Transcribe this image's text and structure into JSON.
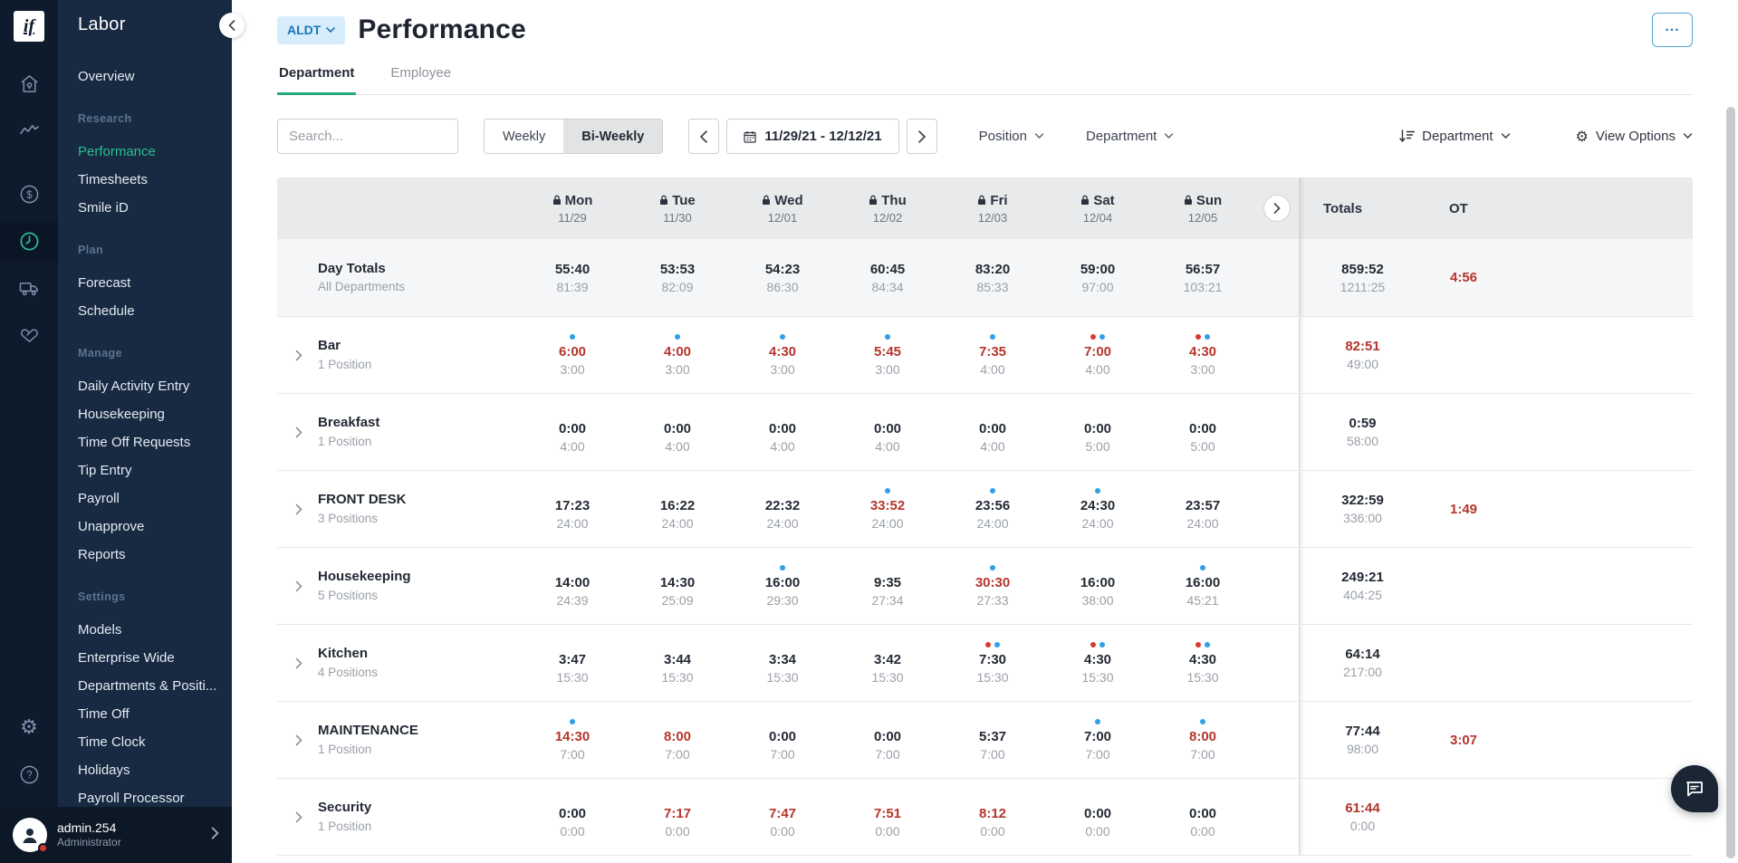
{
  "sidebar": {
    "product": "Labor",
    "rail_icons": [
      {
        "icon": "home",
        "active": false
      },
      {
        "icon": "trend",
        "active": false
      },
      {
        "icon": "dollar",
        "active": false
      },
      {
        "icon": "clock",
        "active": true
      },
      {
        "icon": "truck",
        "active": false
      },
      {
        "icon": "hands",
        "active": false
      }
    ],
    "rail_bottom_icons": [
      {
        "icon": "gear",
        "active": false
      },
      {
        "icon": "help",
        "active": false
      }
    ],
    "sections": [
      {
        "label": "",
        "items": [
          {
            "label": "Overview",
            "active": false
          }
        ]
      },
      {
        "label": "Research",
        "items": [
          {
            "label": "Performance",
            "active": true
          },
          {
            "label": "Timesheets",
            "active": false
          },
          {
            "label": "Smile iD",
            "active": false
          }
        ]
      },
      {
        "label": "Plan",
        "items": [
          {
            "label": "Forecast",
            "active": false
          },
          {
            "label": "Schedule",
            "active": false
          }
        ]
      },
      {
        "label": "Manage",
        "items": [
          {
            "label": "Daily Activity Entry",
            "active": false
          },
          {
            "label": "Housekeeping",
            "active": false
          },
          {
            "label": "Time Off Requests",
            "active": false
          },
          {
            "label": "Tip Entry",
            "active": false
          },
          {
            "label": "Payroll",
            "active": false
          },
          {
            "label": "Unapprove",
            "active": false
          },
          {
            "label": "Reports",
            "active": false
          }
        ]
      },
      {
        "label": "Settings",
        "items": [
          {
            "label": "Models",
            "active": false
          },
          {
            "label": "Enterprise Wide",
            "active": false
          },
          {
            "label": "Departments & Positi...",
            "active": false
          },
          {
            "label": "Time Off",
            "active": false
          },
          {
            "label": "Time Clock",
            "active": false
          },
          {
            "label": "Holidays",
            "active": false
          },
          {
            "label": "Payroll Processor",
            "active": false
          }
        ]
      }
    ],
    "user": {
      "name": "admin.254",
      "role": "Administrator"
    }
  },
  "header": {
    "scope_label": "ALDT",
    "title": "Performance",
    "tabs": [
      {
        "label": "Department",
        "active": true
      },
      {
        "label": "Employee",
        "active": false
      }
    ]
  },
  "toolbar": {
    "search_placeholder": "Search...",
    "view_toggle": [
      {
        "label": "Weekly",
        "selected": false
      },
      {
        "label": "Bi-Weekly",
        "selected": true
      }
    ],
    "date_range": "11/29/21 - 12/12/21",
    "position_label": "Position",
    "department_label": "Department",
    "sort_label": "Department",
    "view_options_label": "View Options"
  },
  "table": {
    "day_headers": [
      {
        "day": "Mon",
        "date": "11/29"
      },
      {
        "day": "Tue",
        "date": "11/30"
      },
      {
        "day": "Wed",
        "date": "12/01"
      },
      {
        "day": "Thu",
        "date": "12/02"
      },
      {
        "day": "Fri",
        "date": "12/03"
      },
      {
        "day": "Sat",
        "date": "12/04"
      },
      {
        "day": "Sun",
        "date": "12/05"
      }
    ],
    "totals_label": "Totals",
    "ot_label": "OT",
    "day_totals": {
      "name": "Day Totals",
      "sublabel": "All Departments",
      "cells": [
        {
          "a": "55:40",
          "s": "81:39"
        },
        {
          "a": "53:53",
          "s": "82:09"
        },
        {
          "a": "54:23",
          "s": "86:30"
        },
        {
          "a": "60:45",
          "s": "84:34"
        },
        {
          "a": "83:20",
          "s": "85:33"
        },
        {
          "a": "59:00",
          "s": "97:00"
        },
        {
          "a": "56:57",
          "s": "103:21"
        }
      ],
      "total": {
        "a": "859:52",
        "s": "1211:25",
        "red": false
      },
      "ot": "4:56"
    },
    "rows": [
      {
        "name": "Bar",
        "sublabel": "1 Position",
        "cells": [
          {
            "a": "6:00",
            "s": "3:00",
            "red": true,
            "dots": [
              "b"
            ]
          },
          {
            "a": "4:00",
            "s": "3:00",
            "red": true,
            "dots": [
              "b"
            ]
          },
          {
            "a": "4:30",
            "s": "3:00",
            "red": true,
            "dots": [
              "b"
            ]
          },
          {
            "a": "5:45",
            "s": "3:00",
            "red": true,
            "dots": [
              "b"
            ]
          },
          {
            "a": "7:35",
            "s": "4:00",
            "red": true,
            "dots": [
              "b"
            ]
          },
          {
            "a": "7:00",
            "s": "4:00",
            "red": true,
            "dots": [
              "r",
              "b"
            ]
          },
          {
            "a": "4:30",
            "s": "3:00",
            "red": true,
            "dots": [
              "r",
              "b"
            ]
          }
        ],
        "total": {
          "a": "82:51",
          "s": "49:00",
          "red": true
        },
        "ot": ""
      },
      {
        "name": "Breakfast",
        "sublabel": "1 Position",
        "cells": [
          {
            "a": "0:00",
            "s": "4:00",
            "red": false,
            "dots": []
          },
          {
            "a": "0:00",
            "s": "4:00",
            "red": false,
            "dots": []
          },
          {
            "a": "0:00",
            "s": "4:00",
            "red": false,
            "dots": []
          },
          {
            "a": "0:00",
            "s": "4:00",
            "red": false,
            "dots": []
          },
          {
            "a": "0:00",
            "s": "4:00",
            "red": false,
            "dots": []
          },
          {
            "a": "0:00",
            "s": "5:00",
            "red": false,
            "dots": []
          },
          {
            "a": "0:00",
            "s": "5:00",
            "red": false,
            "dots": []
          }
        ],
        "total": {
          "a": "0:59",
          "s": "58:00",
          "red": false
        },
        "ot": ""
      },
      {
        "name": "FRONT DESK",
        "sublabel": "3 Positions",
        "cells": [
          {
            "a": "17:23",
            "s": "24:00",
            "red": false,
            "dots": []
          },
          {
            "a": "16:22",
            "s": "24:00",
            "red": false,
            "dots": []
          },
          {
            "a": "22:32",
            "s": "24:00",
            "red": false,
            "dots": []
          },
          {
            "a": "33:52",
            "s": "24:00",
            "red": true,
            "dots": [
              "b"
            ]
          },
          {
            "a": "23:56",
            "s": "24:00",
            "red": false,
            "dots": [
              "b"
            ]
          },
          {
            "a": "24:30",
            "s": "24:00",
            "red": false,
            "dots": [
              "b"
            ]
          },
          {
            "a": "23:57",
            "s": "24:00",
            "red": false,
            "dots": []
          }
        ],
        "total": {
          "a": "322:59",
          "s": "336:00",
          "red": false
        },
        "ot": "1:49"
      },
      {
        "name": "Housekeeping",
        "sublabel": "5 Positions",
        "cells": [
          {
            "a": "14:00",
            "s": "24:39",
            "red": false,
            "dots": []
          },
          {
            "a": "14:30",
            "s": "25:09",
            "red": false,
            "dots": []
          },
          {
            "a": "16:00",
            "s": "29:30",
            "red": false,
            "dots": [
              "b"
            ]
          },
          {
            "a": "9:35",
            "s": "27:34",
            "red": false,
            "dots": []
          },
          {
            "a": "30:30",
            "s": "27:33",
            "red": true,
            "dots": [
              "b"
            ]
          },
          {
            "a": "16:00",
            "s": "38:00",
            "red": false,
            "dots": []
          },
          {
            "a": "16:00",
            "s": "45:21",
            "red": false,
            "dots": [
              "b"
            ]
          }
        ],
        "total": {
          "a": "249:21",
          "s": "404:25",
          "red": false
        },
        "ot": ""
      },
      {
        "name": "Kitchen",
        "sublabel": "4 Positions",
        "cells": [
          {
            "a": "3:47",
            "s": "15:30",
            "red": false,
            "dots": []
          },
          {
            "a": "3:44",
            "s": "15:30",
            "red": false,
            "dots": []
          },
          {
            "a": "3:34",
            "s": "15:30",
            "red": false,
            "dots": []
          },
          {
            "a": "3:42",
            "s": "15:30",
            "red": false,
            "dots": []
          },
          {
            "a": "7:30",
            "s": "15:30",
            "red": false,
            "dots": [
              "r",
              "b"
            ]
          },
          {
            "a": "4:30",
            "s": "15:30",
            "red": false,
            "dots": [
              "r",
              "b"
            ]
          },
          {
            "a": "4:30",
            "s": "15:30",
            "red": false,
            "dots": [
              "r",
              "b"
            ]
          }
        ],
        "total": {
          "a": "64:14",
          "s": "217:00",
          "red": false
        },
        "ot": ""
      },
      {
        "name": "MAINTENANCE",
        "sublabel": "1 Position",
        "cells": [
          {
            "a": "14:30",
            "s": "7:00",
            "red": true,
            "dots": [
              "b"
            ]
          },
          {
            "a": "8:00",
            "s": "7:00",
            "red": true,
            "dots": []
          },
          {
            "a": "0:00",
            "s": "7:00",
            "red": false,
            "dots": []
          },
          {
            "a": "0:00",
            "s": "7:00",
            "red": false,
            "dots": []
          },
          {
            "a": "5:37",
            "s": "7:00",
            "red": false,
            "dots": []
          },
          {
            "a": "7:00",
            "s": "7:00",
            "red": false,
            "dots": [
              "b"
            ]
          },
          {
            "a": "8:00",
            "s": "7:00",
            "red": true,
            "dots": [
              "b"
            ]
          }
        ],
        "total": {
          "a": "77:44",
          "s": "98:00",
          "red": false
        },
        "ot": "3:07"
      },
      {
        "name": "Security",
        "sublabel": "1 Position",
        "cells": [
          {
            "a": "0:00",
            "s": "0:00",
            "red": false,
            "dots": []
          },
          {
            "a": "7:17",
            "s": "0:00",
            "red": true,
            "dots": []
          },
          {
            "a": "7:47",
            "s": "0:00",
            "red": true,
            "dots": []
          },
          {
            "a": "7:51",
            "s": "0:00",
            "red": true,
            "dots": []
          },
          {
            "a": "8:12",
            "s": "0:00",
            "red": true,
            "dots": []
          },
          {
            "a": "0:00",
            "s": "0:00",
            "red": false,
            "dots": []
          },
          {
            "a": "0:00",
            "s": "0:00",
            "red": false,
            "dots": []
          }
        ],
        "total": {
          "a": "61:44",
          "s": "0:00",
          "red": true
        },
        "ot": ""
      }
    ]
  },
  "colors": {
    "accent_teal": "#2dbd8e",
    "over_red": "#b5352c",
    "dot_blue": "#2e9fe8",
    "dot_red": "#d8392f",
    "chip_bg": "#d8edfb",
    "chip_text": "#1a77b5",
    "sidebar_bg": "#172a42",
    "rail_bg": "#0d1b2d"
  }
}
